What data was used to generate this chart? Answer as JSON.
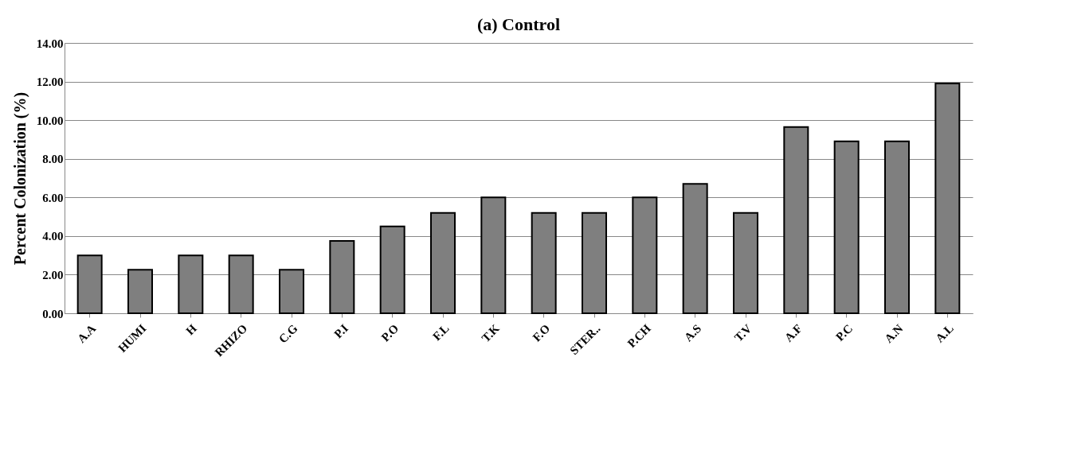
{
  "chart_data": {
    "type": "bar",
    "title": "(a) Control",
    "ylabel": "Percent Colonization (%)",
    "categories": [
      "A.A",
      "HUMI",
      "H",
      "RHIZO",
      "C.G",
      "P.I",
      "P.O",
      "F.L",
      "T.K",
      "F.O",
      "STER..",
      "P.CH",
      "A.S",
      "T.V",
      "A.F",
      "P.C",
      "A.N",
      "A.L"
    ],
    "values": [
      3.0,
      2.25,
      3.0,
      3.0,
      2.25,
      3.75,
      4.5,
      5.2,
      6.0,
      5.2,
      5.2,
      6.0,
      6.7,
      5.2,
      9.65,
      8.9,
      8.9,
      11.9
    ],
    "color": "#7f7f7f",
    "ylim": [
      0,
      14
    ],
    "yticks": [
      {
        "value": 0,
        "label": "0.00"
      },
      {
        "value": 2,
        "label": "2.00"
      },
      {
        "value": 4,
        "label": "4.00"
      },
      {
        "value": 6,
        "label": "6.00"
      },
      {
        "value": 8,
        "label": "8.00"
      },
      {
        "value": 10,
        "label": "10.00"
      },
      {
        "value": 12,
        "label": "12.00"
      },
      {
        "value": 14,
        "label": "14.00"
      }
    ],
    "grid": "y"
  }
}
